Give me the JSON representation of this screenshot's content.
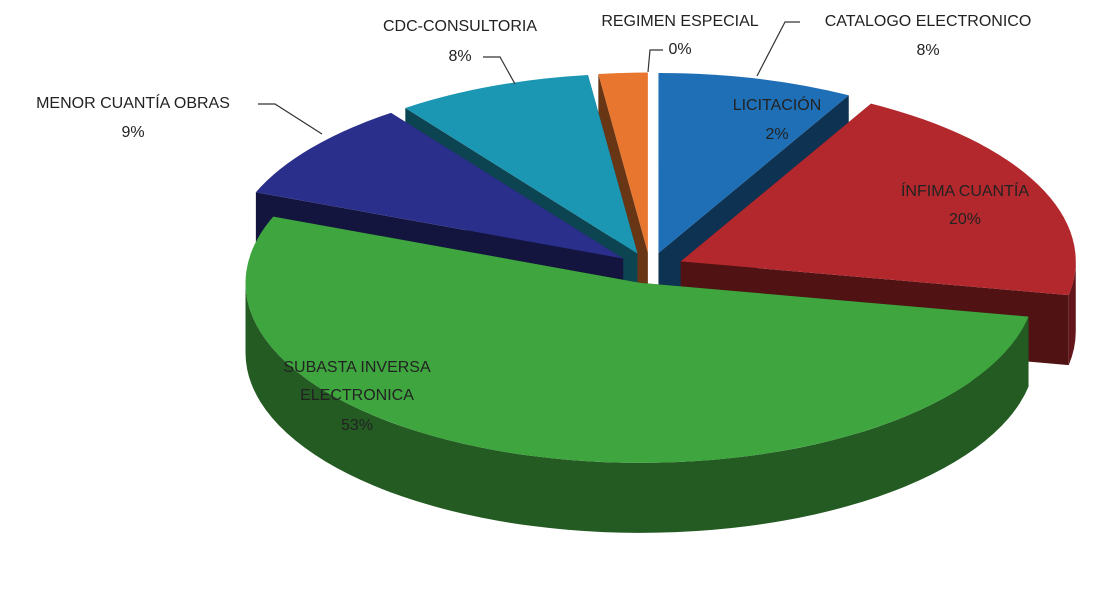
{
  "chart_data": {
    "type": "pie3d",
    "categories": [
      "CATALOGO ELECTRONICO",
      "ÍNFIMA CUANTÍA",
      "SUBASTA INVERSA ELECTRONICA",
      "MENOR CUANTÍA OBRAS",
      "CDC-CONSULTORIA",
      "LICITACIÓN",
      "REGIMEN ESPECIAL"
    ],
    "values": [
      8,
      20,
      53,
      9,
      8,
      2,
      0
    ],
    "value_labels": [
      "8%",
      "20%",
      "53%",
      "9%",
      "8%",
      "2%",
      "0%"
    ],
    "colors": [
      "#1f6fb6",
      "#b3282d",
      "#3fa53f",
      "#2b2f8c",
      "#1c97b3",
      "#e8762f",
      "#9a9a9a"
    ]
  }
}
